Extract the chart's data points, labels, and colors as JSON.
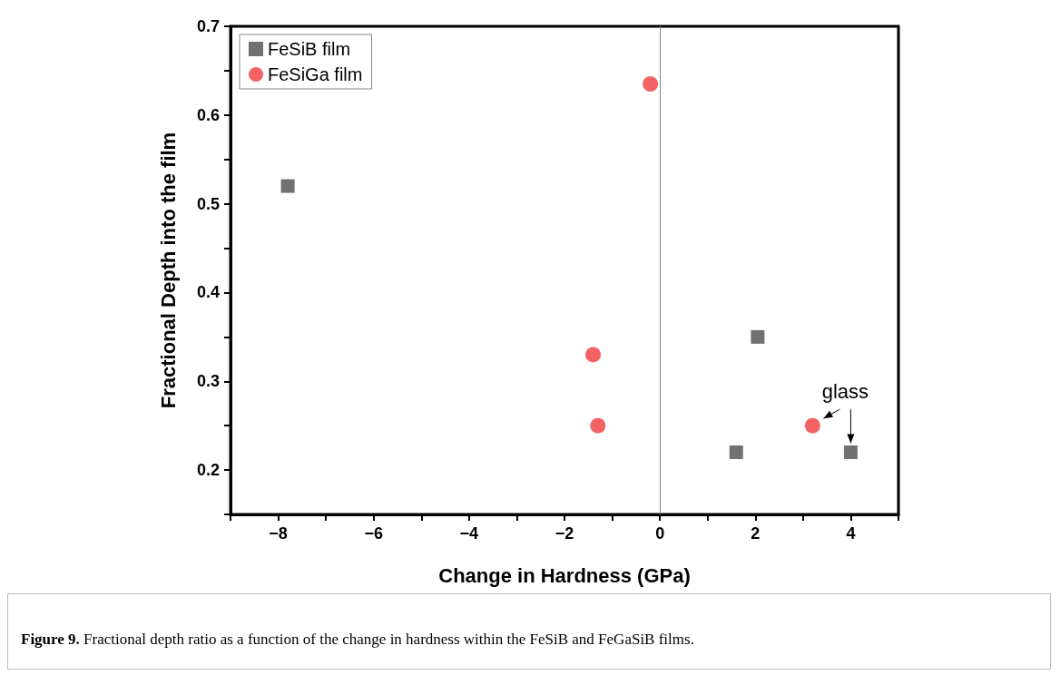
{
  "chart_data": {
    "type": "scatter",
    "xlabel": "Change in Hardness (GPa)",
    "ylabel": "Fractional Depth into the film",
    "series": [
      {
        "name": "FeSiB film",
        "color": "#4d4d4d",
        "marker": "square",
        "x": [
          -7.8,
          2.05,
          1.6,
          4.0
        ],
        "values": [
          0.52,
          0.35,
          0.22,
          0.22
        ]
      },
      {
        "name": "FeSiGa film",
        "color": "#f03c3c",
        "marker": "circle",
        "x": [
          -0.2,
          -1.4,
          -1.3,
          3.2
        ],
        "values": [
          0.635,
          0.33,
          0.25,
          0.25
        ]
      }
    ],
    "xlim": [
      -9,
      5
    ],
    "xticks": [
      {
        "value": -9,
        "label": null
      },
      -8,
      {
        "value": -7,
        "label": null
      },
      -6,
      {
        "value": -5,
        "label": null
      },
      -4,
      {
        "value": -3,
        "label": null
      },
      -2,
      {
        "value": -1,
        "label": null
      },
      0,
      {
        "value": 1,
        "label": null
      },
      2,
      {
        "value": 3,
        "label": null
      },
      4,
      {
        "value": 5,
        "label": null
      }
    ],
    "ylim": [
      0.15,
      0.7
    ],
    "yticks": [
      {
        "value": 0.15,
        "label": null
      },
      0.2,
      {
        "value": 0.25,
        "label": null
      },
      0.3,
      {
        "value": 0.35,
        "label": null
      },
      0.4,
      {
        "value": 0.45,
        "label": null
      },
      0.5,
      {
        "value": 0.55,
        "label": null
      },
      0.6,
      {
        "value": 0.65,
        "label": null
      },
      0.7
    ],
    "ref_lines": [
      {
        "axis": "x",
        "value": 0,
        "label": null,
        "color": "#888888"
      }
    ],
    "annotations": [
      {
        "text": "glass",
        "x": 3.2,
        "y": 0.25
      },
      "Figure 9.",
      "Fractional depth ratio as a function of the change in hardness within the FeSiB and FeGaSiB films."
    ],
    "legend": "top left",
    "grid": false
  }
}
